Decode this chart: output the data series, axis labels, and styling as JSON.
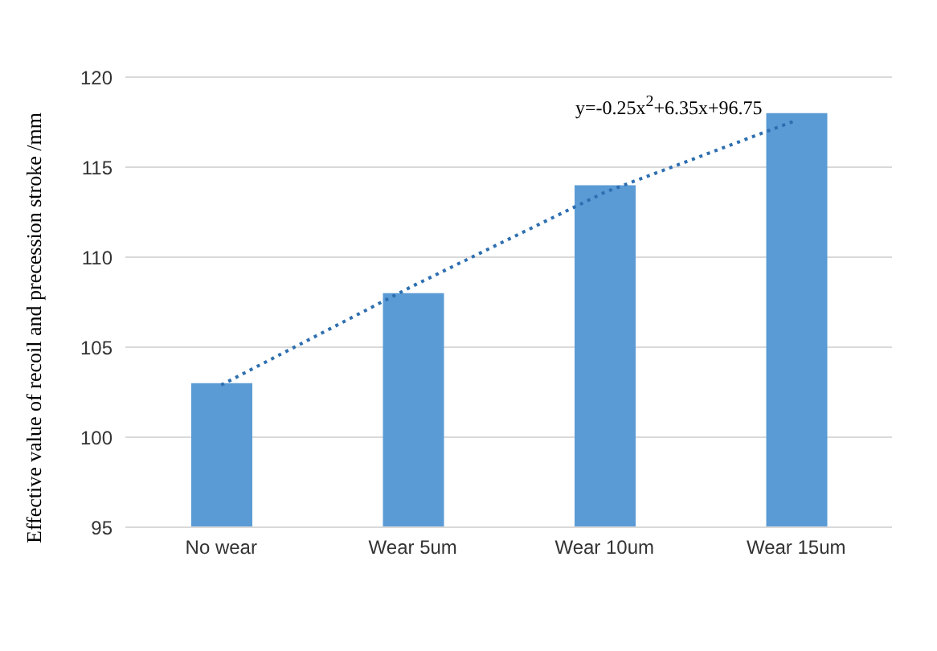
{
  "chart_data": {
    "type": "bar",
    "ylabel": "Effective value of recoil and precession stroke /mm",
    "categories": [
      "No wear",
      "Wear 5um",
      "Wear 10um",
      "Wear 15um"
    ],
    "series": [
      {
        "color": "#5b9bd5",
        "values": [
          103,
          108,
          114,
          118
        ]
      },
      {
        "type": "line",
        "color": "#2e6fb0",
        "line_style": "dotted",
        "marker": "none",
        "values": [
          102.9,
          108.4,
          113.6,
          117.6
        ]
      }
    ],
    "ylim": [
      95,
      120
    ],
    "yticks": [
      95,
      100,
      105,
      110,
      115,
      120
    ],
    "grid": "y",
    "legend": false,
    "annotations": [
      "y=-0.25x$^{2}$+6.35x+96.75"
    ]
  }
}
